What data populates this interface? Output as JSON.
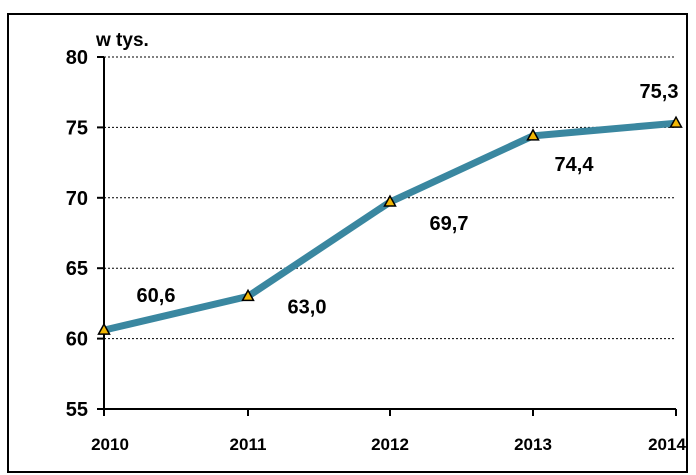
{
  "chart_data": {
    "type": "line",
    "unit_label": "w tys.",
    "x": [
      "2010",
      "2011",
      "2012",
      "2013",
      "2014"
    ],
    "series": [
      {
        "values": [
          60.6,
          63.0,
          69.7,
          74.4,
          75.3
        ],
        "labels": [
          "60,6",
          "63,0",
          "69,7",
          "74,4",
          "75,3"
        ]
      }
    ],
    "ylim": [
      55,
      80
    ],
    "yticks": [
      "55",
      "60",
      "65",
      "70",
      "75",
      "80"
    ],
    "grid": true,
    "legend": "none",
    "colors": {
      "line": "#3a87a0",
      "marker_fill": "#f2b705",
      "marker_stroke": "#000000",
      "grid": "#000000",
      "frame": "#000000"
    }
  }
}
